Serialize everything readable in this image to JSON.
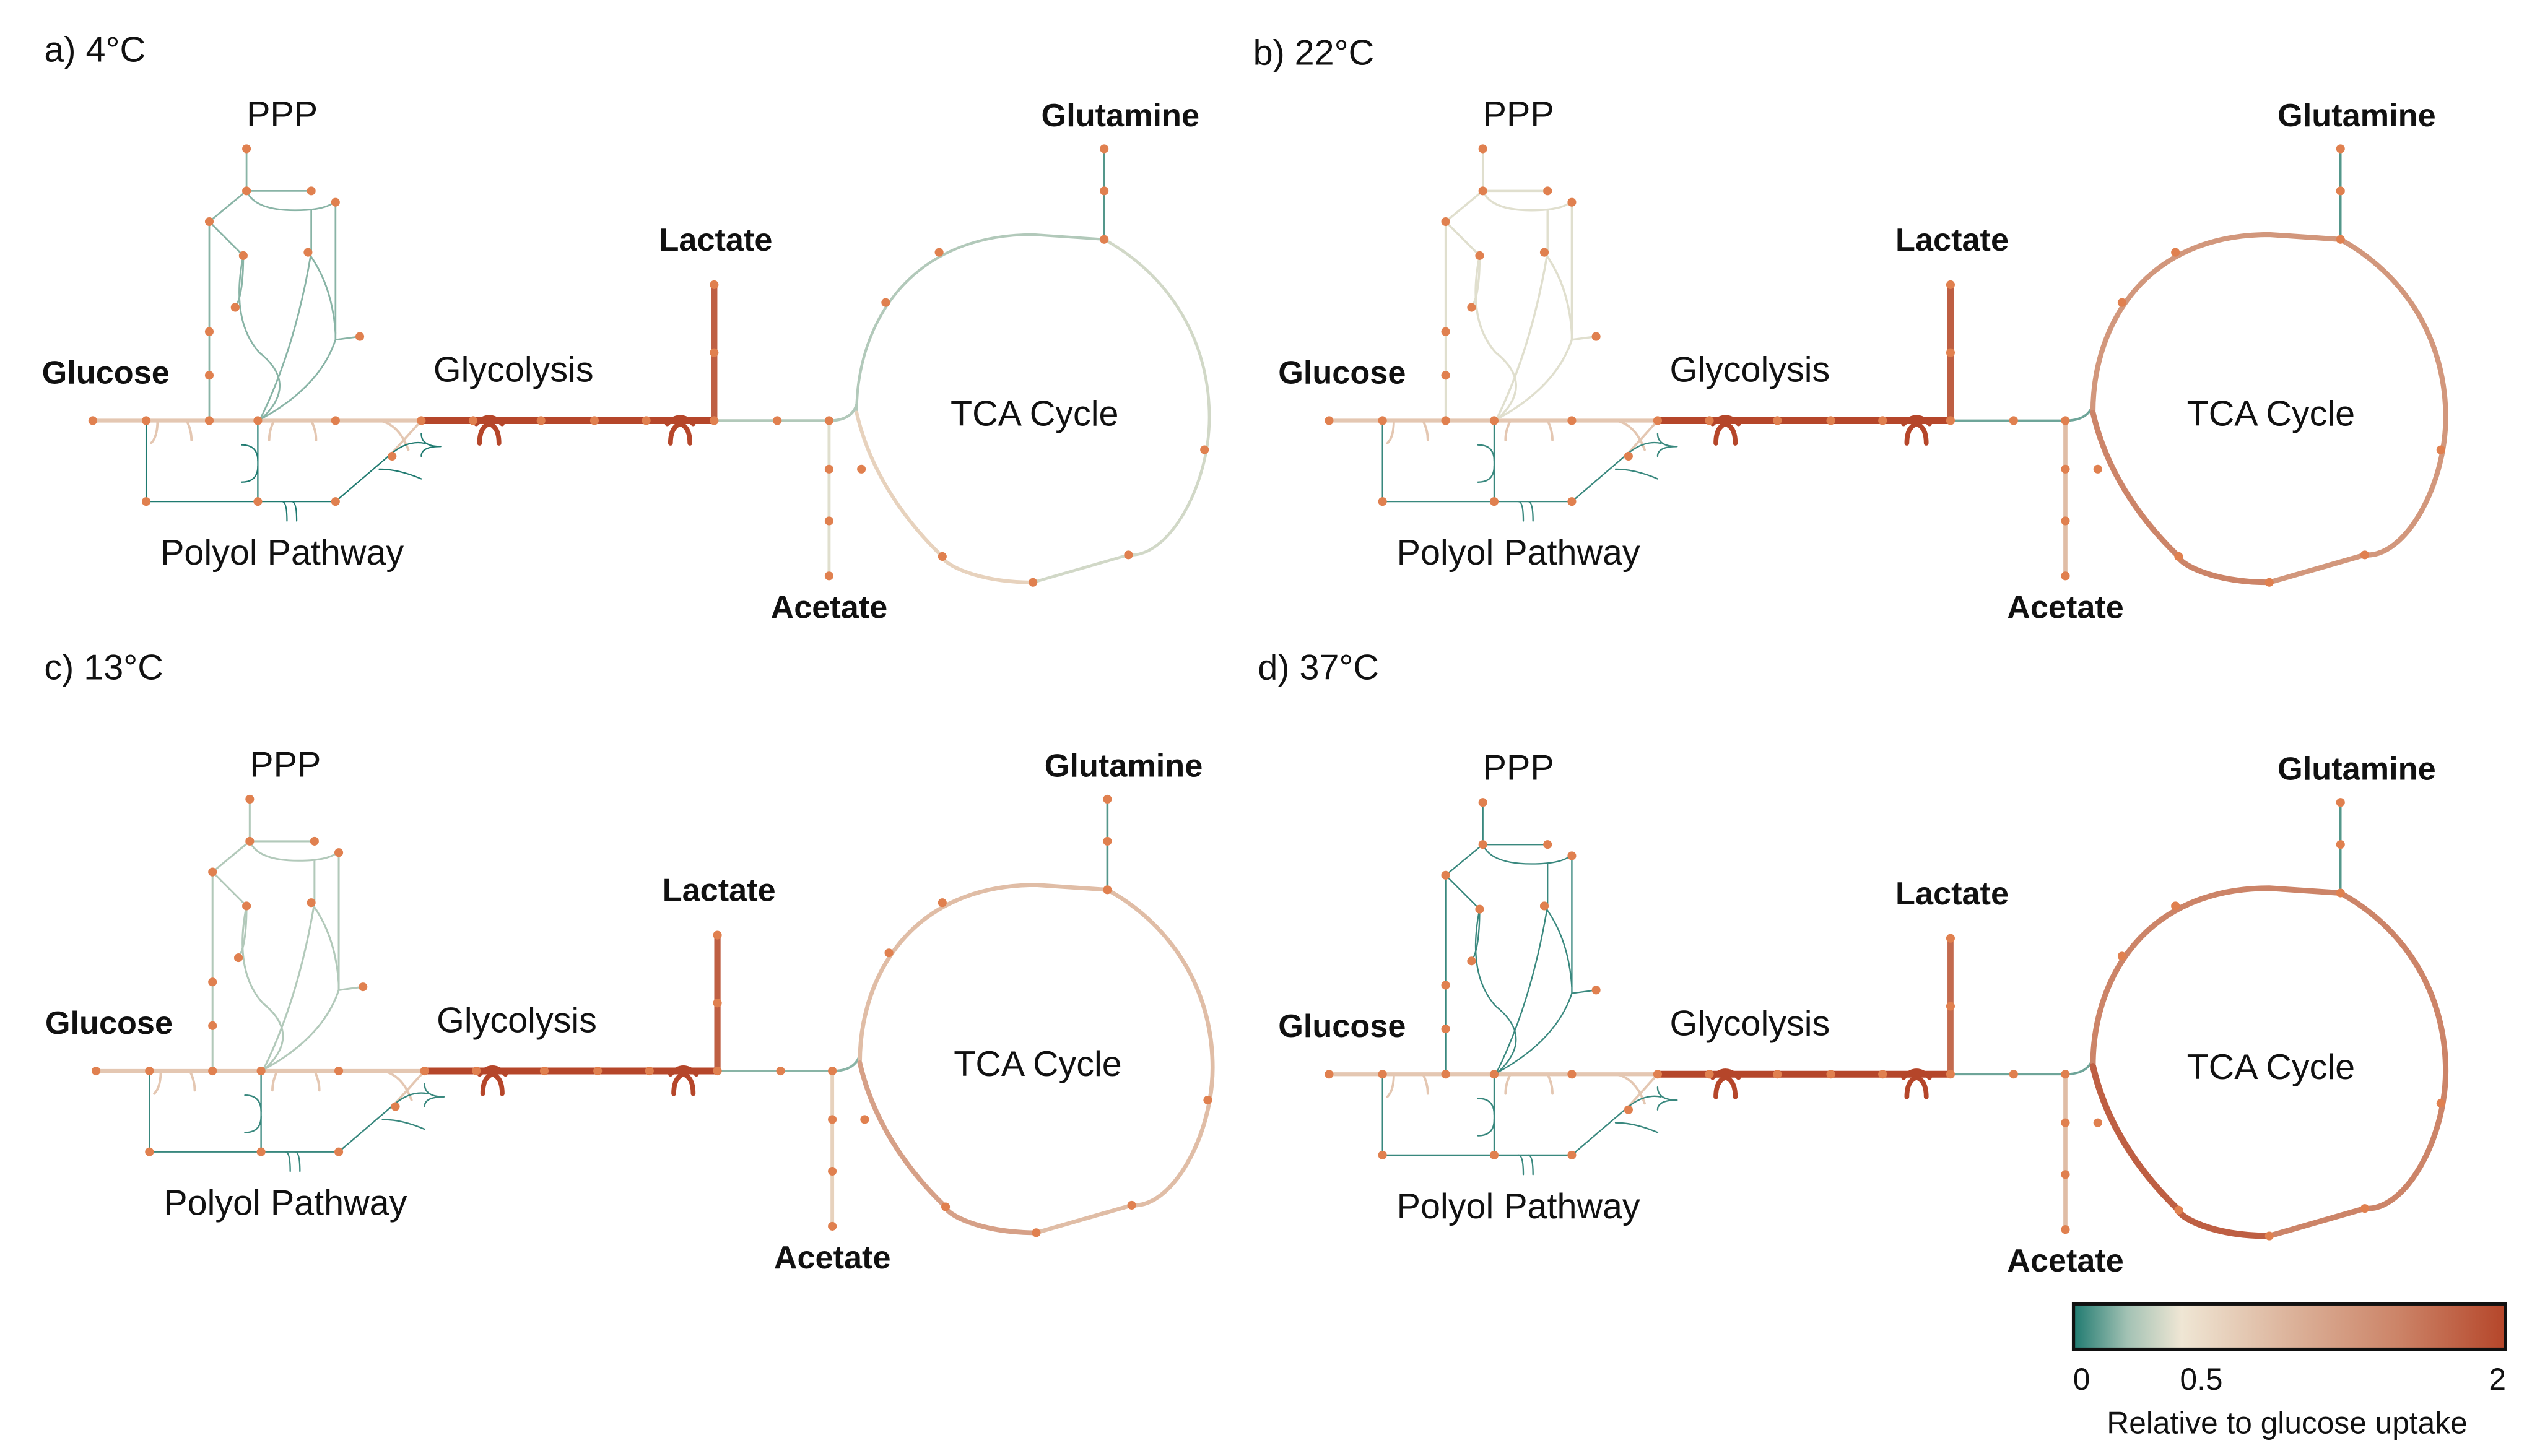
{
  "labels": {
    "ppp": "PPP",
    "glutamine": "Glutamine",
    "lactate": "Lactate",
    "glucose": "Glucose",
    "glycolysis": "Glycolysis",
    "tca": "TCA Cycle",
    "polyol": "Polyol Pathway",
    "acetate": "Acetate"
  },
  "panels": [
    {
      "title": "a) 4°C",
      "flux": {
        "upper_glycolysis": 0.8,
        "lower_glycolysis": 2.0,
        "lactate": 1.8,
        "ppp": 0.2,
        "polyol": 0.0,
        "pyruvate_to_tca": 0.3,
        "acetate": 0.45,
        "glutamine": 0.1,
        "tca_upper_left": 0.3,
        "tca_right": 0.4,
        "tca_lower_left": 0.7
      }
    },
    {
      "title": "b) 22°C",
      "flux": {
        "upper_glycolysis": 0.8,
        "lower_glycolysis": 2.0,
        "lactate": 1.8,
        "ppp": 0.45,
        "polyol": 0.05,
        "pyruvate_to_tca": 0.15,
        "acetate": 0.9,
        "glutamine": 0.1,
        "tca_upper_left": 1.3,
        "tca_right": 1.3,
        "tca_lower_left": 1.5
      }
    },
    {
      "title": "c) 13°C",
      "flux": {
        "upper_glycolysis": 0.8,
        "lower_glycolysis": 2.0,
        "lactate": 1.8,
        "ppp": 0.3,
        "polyol": 0.05,
        "pyruvate_to_tca": 0.2,
        "acetate": 0.7,
        "glutamine": 0.1,
        "tca_upper_left": 0.9,
        "tca_right": 0.9,
        "tca_lower_left": 1.2
      }
    },
    {
      "title": "d) 37°C",
      "flux": {
        "upper_glycolysis": 0.8,
        "lower_glycolysis": 2.0,
        "lactate": 1.7,
        "ppp": 0.05,
        "polyol": 0.05,
        "pyruvate_to_tca": 0.15,
        "acetate": 0.9,
        "glutamine": 0.1,
        "tca_upper_left": 1.5,
        "tca_right": 1.5,
        "tca_lower_left": 1.8
      }
    }
  ],
  "colorbar": {
    "label": "Relative to glucose uptake",
    "ticks": [
      "0",
      "0.5",
      "2"
    ],
    "range": [
      0,
      2
    ],
    "stops": [
      {
        "value": 0,
        "color": "#1f7a70"
      },
      {
        "value": 0.25,
        "color": "#a3c2b4"
      },
      {
        "value": 0.5,
        "color": "#efe6d4"
      },
      {
        "value": 1.0,
        "color": "#dcb39b"
      },
      {
        "value": 1.5,
        "color": "#cc8468"
      },
      {
        "value": 2,
        "color": "#b5462a"
      }
    ]
  },
  "colors": {
    "node": "#e0804f"
  }
}
